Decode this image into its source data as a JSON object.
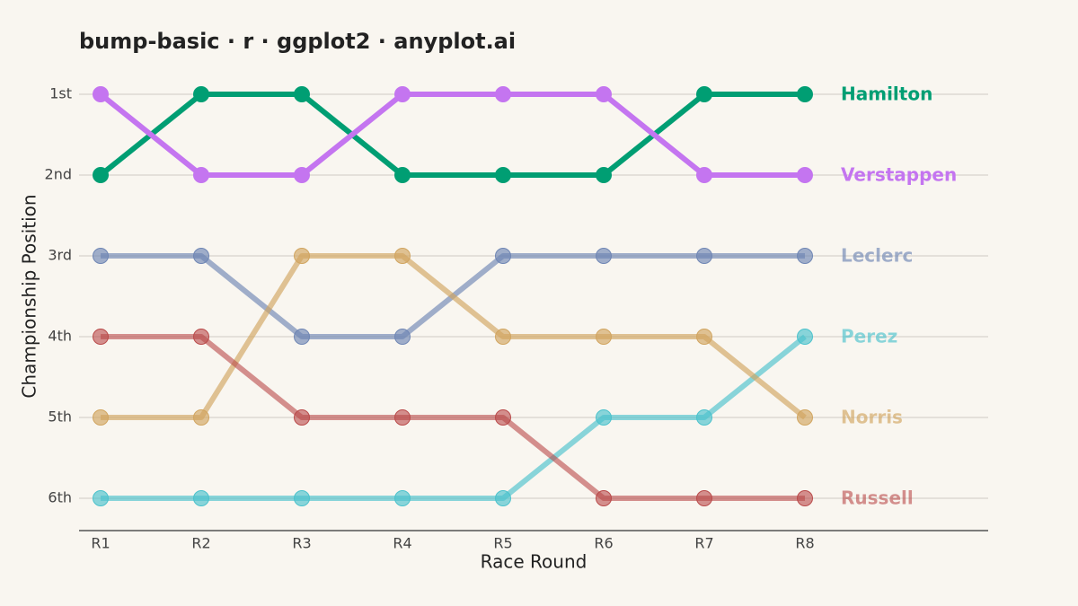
{
  "chart_data": {
    "type": "bump",
    "title": "bump-basic · r · ggplot2 · anyplot.ai",
    "x_label": "Race Round",
    "y_label": "Championship Position",
    "categories": [
      "R1",
      "R2",
      "R3",
      "R4",
      "R5",
      "R6",
      "R7",
      "R8"
    ],
    "ylim": [
      0.6,
      6.4
    ],
    "y_reversed": true,
    "yticks": [
      {
        "value": 1,
        "label": "1st"
      },
      {
        "value": 2,
        "label": "2nd"
      },
      {
        "value": 3,
        "label": "3rd"
      },
      {
        "value": 4,
        "label": "4th"
      },
      {
        "value": 5,
        "label": "5th"
      },
      {
        "value": 6,
        "label": "6th"
      }
    ],
    "grid": true,
    "series": [
      {
        "name": "Hamilton",
        "color": "#009e73",
        "opacity": 1,
        "values": [
          2,
          1,
          1,
          2,
          2,
          2,
          1,
          1
        ]
      },
      {
        "name": "Verstappen",
        "color": "#c475f0",
        "opacity": 1,
        "values": [
          1,
          2,
          2,
          1,
          1,
          1,
          2,
          2
        ]
      },
      {
        "name": "Leclerc",
        "color": "#6f86b4",
        "opacity": 0.65,
        "values": [
          3,
          3,
          4,
          4,
          3,
          3,
          3,
          3
        ]
      },
      {
        "name": "Perez",
        "color": "#4cc2cc",
        "opacity": 0.65,
        "values": [
          6,
          6,
          6,
          6,
          6,
          5,
          5,
          4
        ]
      },
      {
        "name": "Norris",
        "color": "#d1a560",
        "opacity": 0.65,
        "values": [
          5,
          5,
          3,
          3,
          4,
          4,
          4,
          5
        ]
      },
      {
        "name": "Russell",
        "color": "#b94a4a",
        "opacity": 0.6,
        "values": [
          4,
          4,
          5,
          5,
          5,
          6,
          6,
          6
        ]
      }
    ]
  }
}
